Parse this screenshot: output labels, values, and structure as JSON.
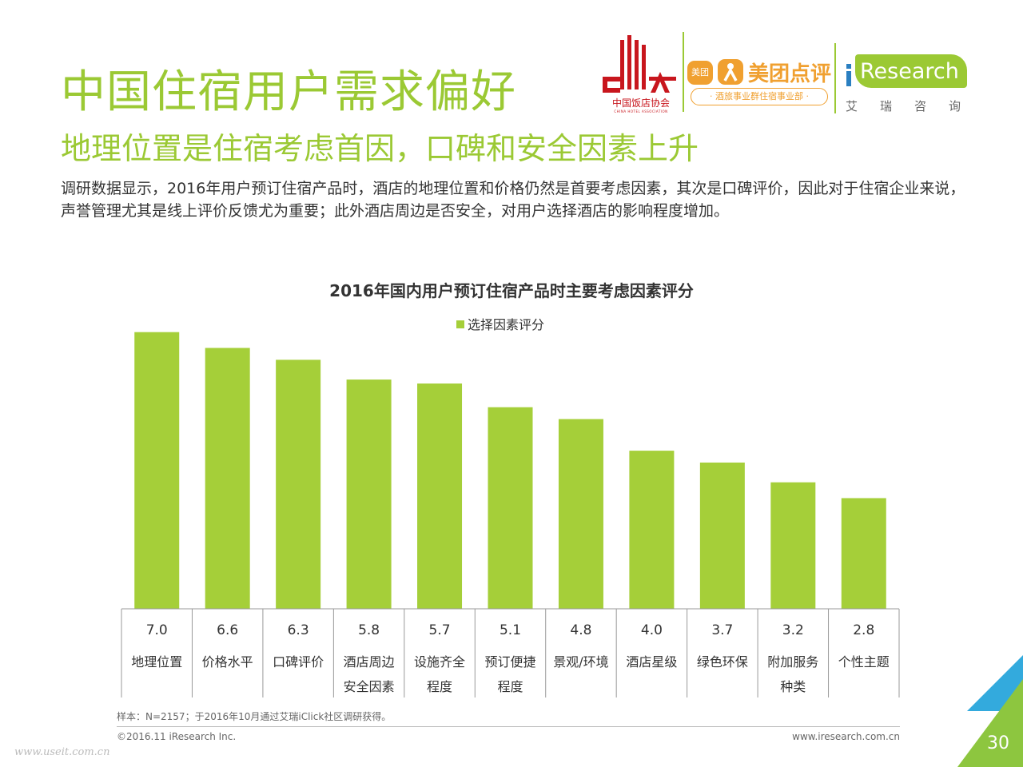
{
  "header": {
    "title": "中国住宿用户需求偏好",
    "subtitle": "地理位置是住宿考虑首因，口碑和安全因素上升",
    "description": "调研数据显示，2016年用户预订住宿产品时，酒店的地理位置和价格仍然是首要考虑因素，其次是口碑评价，因此对于住宿企业来说，声誉管理尤其是线上评价反馈尤为重要；此外酒店周边是否安全，对用户选择酒店的影响程度增加。"
  },
  "logos": {
    "chha_name_cn": "中国饭店协会",
    "chha_name_en": "CHINA HOTEL ASSOCIATION",
    "meituan_badge": "美团",
    "meituan_name": "美团点评",
    "meituan_division": "· 酒旅事业群住宿事业部 ·",
    "iresearch_name": "Research",
    "iresearch_cn": "艾瑞咨询"
  },
  "chart_data": {
    "type": "bar",
    "title": "2016年国内用户预订住宿产品时主要考虑因素评分",
    "categories": [
      [
        "地理位置"
      ],
      [
        "价格水平"
      ],
      [
        "口碑评价"
      ],
      [
        "酒店周边",
        "安全因素"
      ],
      [
        "设施齐全",
        "程度"
      ],
      [
        "预订便捷",
        "程度"
      ],
      [
        "景观/环境"
      ],
      [
        "酒店星级"
      ],
      [
        "绿色环保"
      ],
      [
        "附加服务",
        "种类"
      ],
      [
        "个性主题"
      ]
    ],
    "series": [
      {
        "name": "选择因素评分",
        "values": [
          7.0,
          6.6,
          6.3,
          5.8,
          5.7,
          5.1,
          4.8,
          4.0,
          3.7,
          3.2,
          2.8
        ]
      }
    ],
    "ylim": [
      0,
      7.6
    ],
    "grid": false,
    "legend_position": "top-center",
    "value_labels_in_table": true
  },
  "footer": {
    "note": "样本：N=2157；于2016年10月通过艾瑞iClick社区调研获得。",
    "copyright": "©2016.11 iResearch Inc.",
    "website": "www.iresearch.com.cn",
    "page_number": "30",
    "watermark": "www.useit.com.cn"
  },
  "colors": {
    "accent": "#9bc934",
    "bar": "#a5cf39",
    "corner_blue": "#33aadd",
    "corner_green": "#8dc63f",
    "chha_red": "#c8161d",
    "meituan_orange": "#f0a030"
  }
}
